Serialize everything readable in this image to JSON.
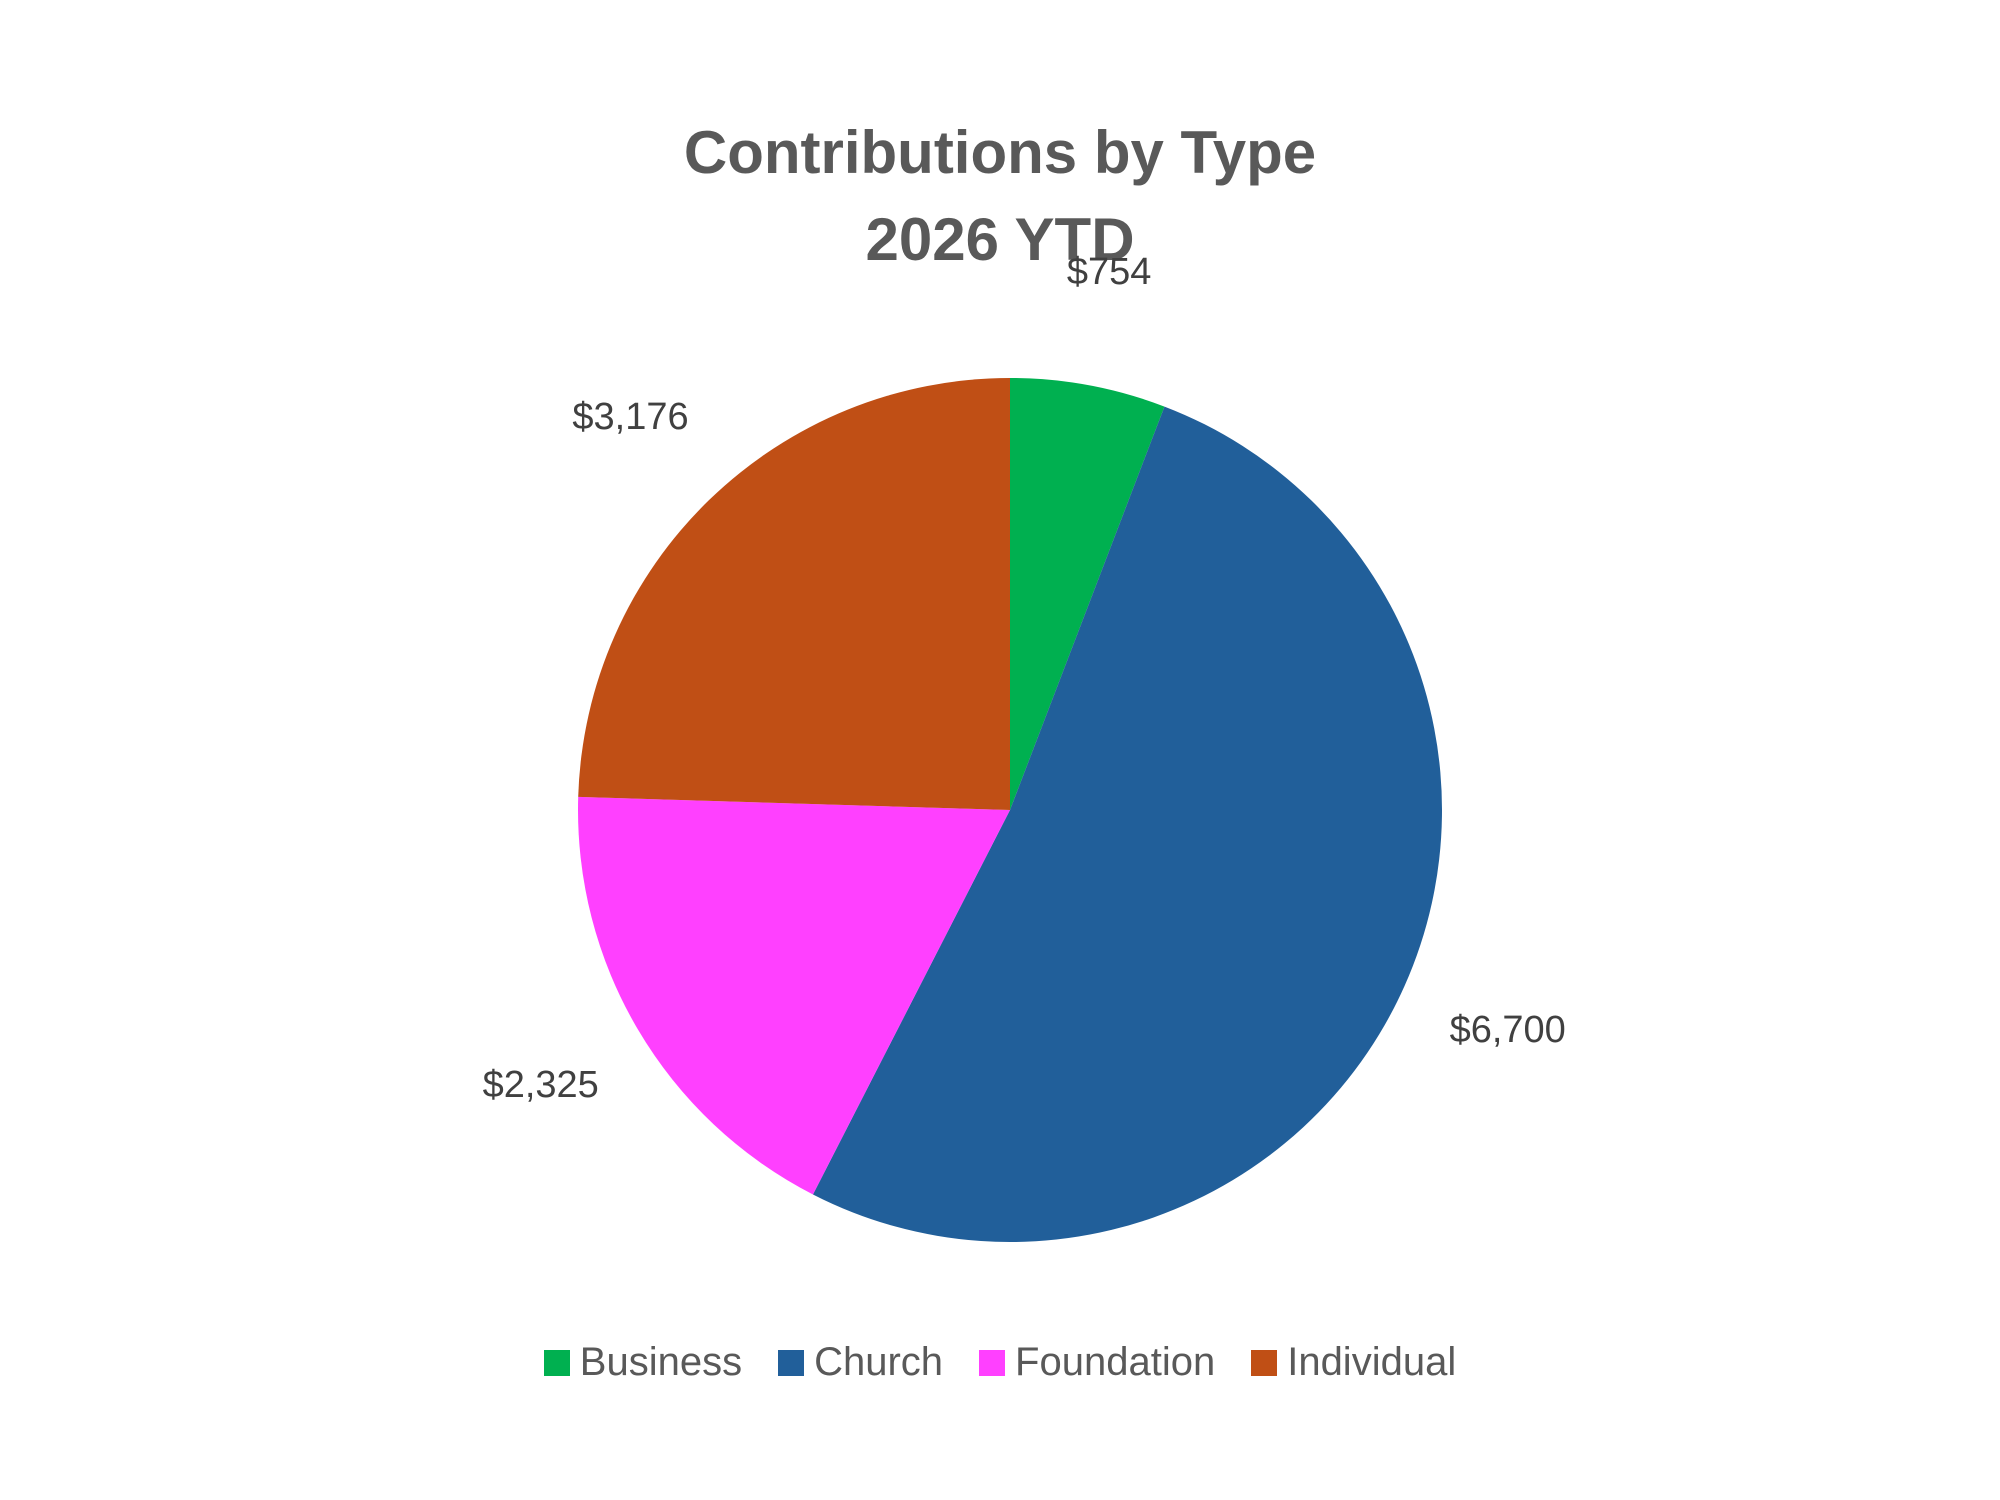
{
  "chart_data": {
    "type": "pie",
    "title": "Contributions by Type",
    "subtitle": "2026 YTD",
    "categories": [
      "Business",
      "Church",
      "Foundation",
      "Individual"
    ],
    "values": [
      754,
      6700,
      2325,
      3176
    ],
    "data_labels": [
      "$754",
      "$6,700",
      "$2,325",
      "$3,176"
    ],
    "colors": [
      "#00B050",
      "#215F9A",
      "#FF40FF",
      "#C04F15"
    ],
    "legend_position": "bottom",
    "start_angle": "top, clockwise"
  }
}
